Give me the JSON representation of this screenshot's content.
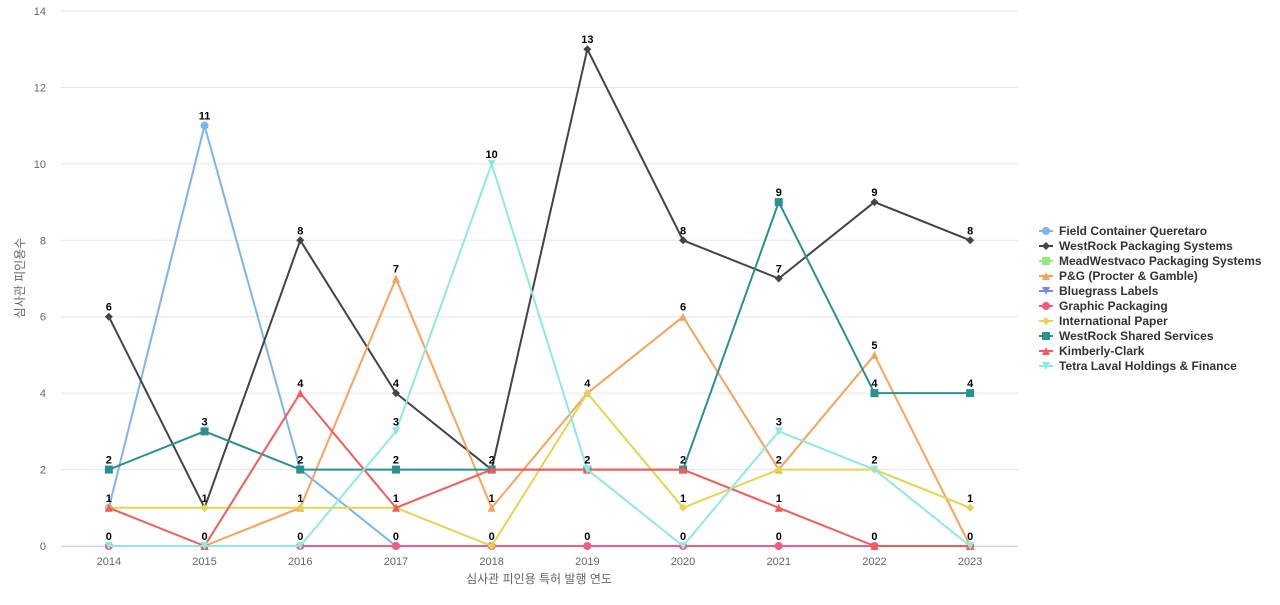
{
  "chart_data": {
    "type": "line",
    "title": "",
    "xlabel": "심사관 피인용 특허 발행 연도",
    "ylabel": "심사관 피인용수",
    "categories": [
      "2014",
      "2015",
      "2016",
      "2017",
      "2018",
      "2019",
      "2020",
      "2021",
      "2022",
      "2023"
    ],
    "ylim": [
      0,
      14
    ],
    "yticks": [
      0,
      2,
      4,
      6,
      8,
      10,
      12,
      14
    ],
    "grid": true,
    "legend_position": "right",
    "series": [
      {
        "name": "Field Container Queretaro",
        "color": "#7cb5ec",
        "marker": "circle",
        "values": [
          1,
          11,
          2,
          0,
          null,
          null,
          null,
          null,
          null,
          null
        ]
      },
      {
        "name": "WestRock Packaging Systems",
        "color": "#434348",
        "marker": "diamond",
        "values": [
          6,
          1,
          8,
          4,
          2,
          13,
          8,
          7,
          9,
          8
        ]
      },
      {
        "name": "MeadWestvaco Packaging Systems",
        "color": "#90ed7d",
        "marker": "square",
        "values": [
          null,
          null,
          null,
          null,
          null,
          null,
          null,
          null,
          null,
          null
        ]
      },
      {
        "name": "P&G (Procter & Gamble)",
        "color": "#f7a35c",
        "marker": "triangle",
        "values": [
          null,
          0,
          1,
          7,
          1,
          4,
          6,
          2,
          5,
          0
        ]
      },
      {
        "name": "Bluegrass Labels",
        "color": "#8085e9",
        "marker": "triangle-down",
        "values": [
          null,
          null,
          null,
          null,
          null,
          null,
          null,
          null,
          null,
          null
        ]
      },
      {
        "name": "Graphic Packaging",
        "color": "#f15c80",
        "marker": "circle",
        "values": [
          0,
          0,
          0,
          0,
          0,
          0,
          0,
          0,
          0,
          0
        ]
      },
      {
        "name": "International Paper",
        "color": "#e4d354",
        "marker": "diamond",
        "values": [
          1,
          1,
          1,
          1,
          0,
          4,
          1,
          2,
          2,
          1
        ]
      },
      {
        "name": "WestRock Shared Services",
        "color": "#2b908f",
        "marker": "square",
        "values": [
          2,
          3,
          2,
          2,
          2,
          2,
          2,
          9,
          4,
          4
        ]
      },
      {
        "name": "Kimberly-Clark",
        "color": "#f45b5b",
        "marker": "triangle",
        "values": [
          1,
          0,
          4,
          1,
          2,
          2,
          2,
          1,
          0,
          0
        ]
      },
      {
        "name": "Tetra Laval Holdings & Finance",
        "color": "#91e8e1",
        "marker": "triangle-down",
        "values": [
          0,
          0,
          0,
          3,
          10,
          2,
          0,
          3,
          2,
          0
        ]
      }
    ],
    "data_labels": [
      {
        "x": "2014",
        "text": "6",
        "y": 6
      },
      {
        "x": "2014",
        "text": "2",
        "y": 2
      },
      {
        "x": "2014",
        "text": "1",
        "y": 1
      },
      {
        "x": "2014",
        "text": "0",
        "y": 0
      },
      {
        "x": "2015",
        "text": "11",
        "y": 11
      },
      {
        "x": "2015",
        "text": "3",
        "y": 3
      },
      {
        "x": "2015",
        "text": "1",
        "y": 1
      },
      {
        "x": "2015",
        "text": "0",
        "y": 0
      },
      {
        "x": "2016",
        "text": "8",
        "y": 8
      },
      {
        "x": "2016",
        "text": "4",
        "y": 4
      },
      {
        "x": "2016",
        "text": "2",
        "y": 2
      },
      {
        "x": "2016",
        "text": "1",
        "y": 1
      },
      {
        "x": "2016",
        "text": "0",
        "y": 0
      },
      {
        "x": "2017",
        "text": "7",
        "y": 7
      },
      {
        "x": "2017",
        "text": "4",
        "y": 4
      },
      {
        "x": "2017",
        "text": "3",
        "y": 3
      },
      {
        "x": "2017",
        "text": "2",
        "y": 2
      },
      {
        "x": "2017",
        "text": "1",
        "y": 1
      },
      {
        "x": "2017",
        "text": "0",
        "y": 0
      },
      {
        "x": "2018",
        "text": "10",
        "y": 10
      },
      {
        "x": "2018",
        "text": "2",
        "y": 2
      },
      {
        "x": "2018",
        "text": "1",
        "y": 1
      },
      {
        "x": "2018",
        "text": "0",
        "y": 0
      },
      {
        "x": "2019",
        "text": "13",
        "y": 13
      },
      {
        "x": "2019",
        "text": "4",
        "y": 4
      },
      {
        "x": "2019",
        "text": "2",
        "y": 2
      },
      {
        "x": "2019",
        "text": "0",
        "y": 0
      },
      {
        "x": "2020",
        "text": "8",
        "y": 8
      },
      {
        "x": "2020",
        "text": "6",
        "y": 6
      },
      {
        "x": "2020",
        "text": "2",
        "y": 2
      },
      {
        "x": "2020",
        "text": "1",
        "y": 1
      },
      {
        "x": "2020",
        "text": "0",
        "y": 0
      },
      {
        "x": "2021",
        "text": "9",
        "y": 9
      },
      {
        "x": "2021",
        "text": "7",
        "y": 7
      },
      {
        "x": "2021",
        "text": "3",
        "y": 3
      },
      {
        "x": "2021",
        "text": "2",
        "y": 2
      },
      {
        "x": "2021",
        "text": "1",
        "y": 1
      },
      {
        "x": "2021",
        "text": "0",
        "y": 0
      },
      {
        "x": "2022",
        "text": "9",
        "y": 9
      },
      {
        "x": "2022",
        "text": "5",
        "y": 5
      },
      {
        "x": "2022",
        "text": "4",
        "y": 4
      },
      {
        "x": "2022",
        "text": "2",
        "y": 2
      },
      {
        "x": "2022",
        "text": "0",
        "y": 0
      },
      {
        "x": "2023",
        "text": "8",
        "y": 8
      },
      {
        "x": "2023",
        "text": "4",
        "y": 4
      },
      {
        "x": "2023",
        "text": "1",
        "y": 1
      },
      {
        "x": "2023",
        "text": "0",
        "y": 0
      }
    ]
  }
}
